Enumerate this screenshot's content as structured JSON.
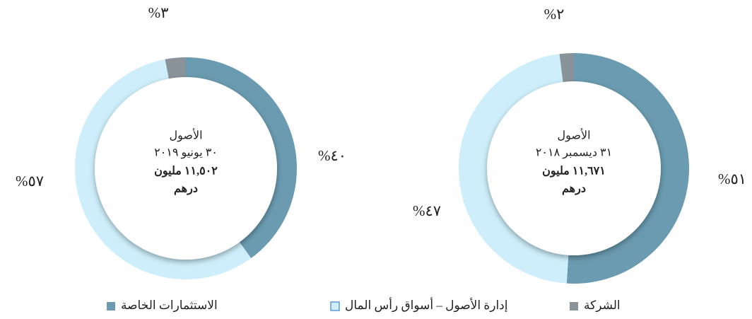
{
  "legend": {
    "categories": [
      "الاستثمارات الخاصة",
      "إدارة الأصول – أسواق رأس المال",
      "الشركة"
    ],
    "colors": [
      "#6a9bb0",
      "#cdeefa",
      "#8a9399"
    ]
  },
  "chart_data": [
    {
      "type": "pie",
      "values": [
        40,
        57,
        3
      ],
      "value_labels": [
        "%٤٠",
        "%٥٧",
        "%٣"
      ],
      "center_text": [
        "الأصول",
        "٣٠ يونيو ٢٠١٩",
        "١١,٥٠٢ مليون",
        "درهم"
      ]
    },
    {
      "type": "pie",
      "values": [
        51,
        47,
        2
      ],
      "value_labels": [
        "%٥١",
        "%٤٧",
        "%٢"
      ],
      "center_text": [
        "الأصول",
        "٣١ ديسمبر ٢٠١٨",
        "١١,٦٧١ مليون",
        "درهم"
      ]
    }
  ]
}
